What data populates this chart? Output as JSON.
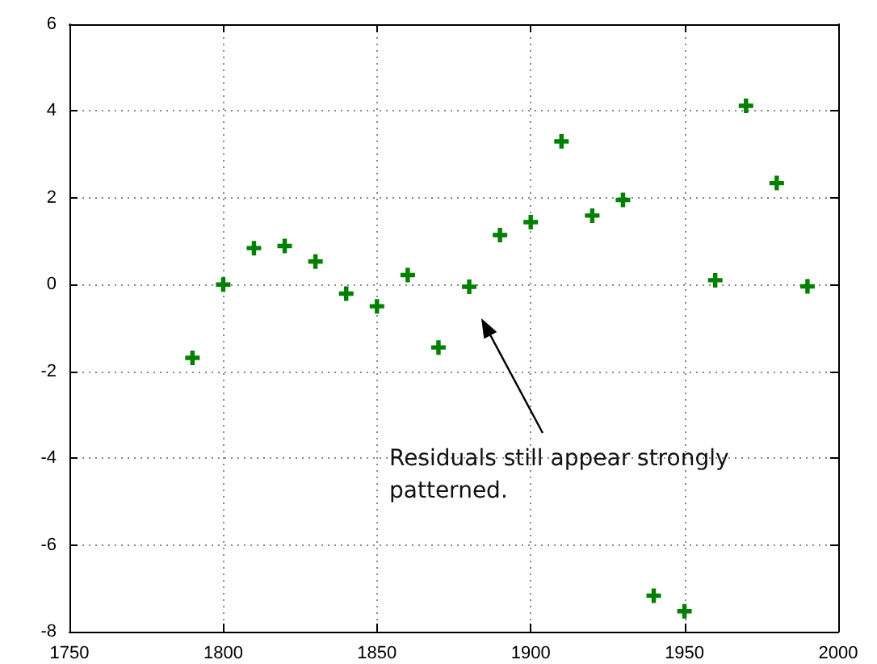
{
  "chart_data": {
    "type": "scatter",
    "x": [
      1790,
      1800,
      1810,
      1820,
      1830,
      1840,
      1850,
      1860,
      1870,
      1880,
      1890,
      1900,
      1910,
      1920,
      1930,
      1940,
      1950,
      1960,
      1970,
      1980,
      1990
    ],
    "series": [
      {
        "color": "#008000",
        "values": [
          -1.69,
          0,
          0.84,
          0.89,
          0.53,
          -0.21,
          -0.5,
          0.22,
          -1.45,
          -0.05,
          1.14,
          1.44,
          3.3,
          1.59,
          1.95,
          -7.17,
          -7.53,
          0.1,
          4.12,
          2.34,
          -0.04
        ]
      }
    ],
    "xlim": [
      1750,
      2000
    ],
    "xticks": [
      1750,
      1800,
      1850,
      1900,
      1950,
      2000
    ],
    "ylim": [
      -8,
      6
    ],
    "yticks": [
      -8,
      -6,
      -4,
      -2,
      0,
      2,
      4,
      6
    ],
    "annotations": [
      "Residuals still appear strongly patterned."
    ],
    "grid": true,
    "marker": "cross"
  }
}
